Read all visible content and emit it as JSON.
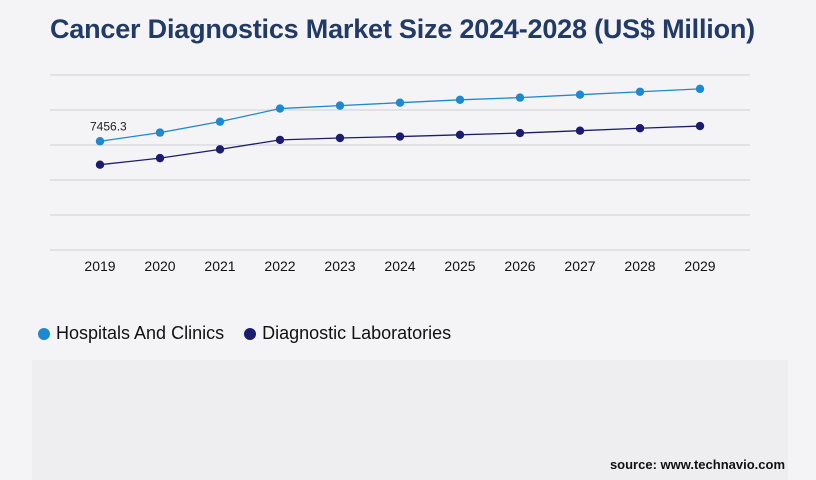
{
  "chart_data": {
    "type": "line",
    "title": "Cancer Diagnostics Market Size 2024-2028 (US$ Million)",
    "categories": [
      "2019",
      "2020",
      "2021",
      "2022",
      "2023",
      "2024",
      "2025",
      "2026",
      "2027",
      "2028",
      "2029"
    ],
    "series": [
      {
        "name": "Hospitals And Clinics",
        "color": "#1e88d0",
        "values": [
          7456.3,
          8050,
          8800,
          9700,
          9900,
          10100,
          10300,
          10450,
          10650,
          10850,
          11050
        ]
      },
      {
        "name": "Diagnostic Laboratories",
        "color": "#1c1c6e",
        "values": [
          5850,
          6300,
          6900,
          7550,
          7680,
          7780,
          7900,
          8020,
          8180,
          8350,
          8500
        ]
      }
    ],
    "annotations": [
      {
        "series": 0,
        "index": 0,
        "label": "7456.3"
      }
    ],
    "ylim": [
      0,
      12000
    ],
    "grid": true,
    "legend_position": "bottom-left"
  },
  "source": "source: www.technavio.com"
}
